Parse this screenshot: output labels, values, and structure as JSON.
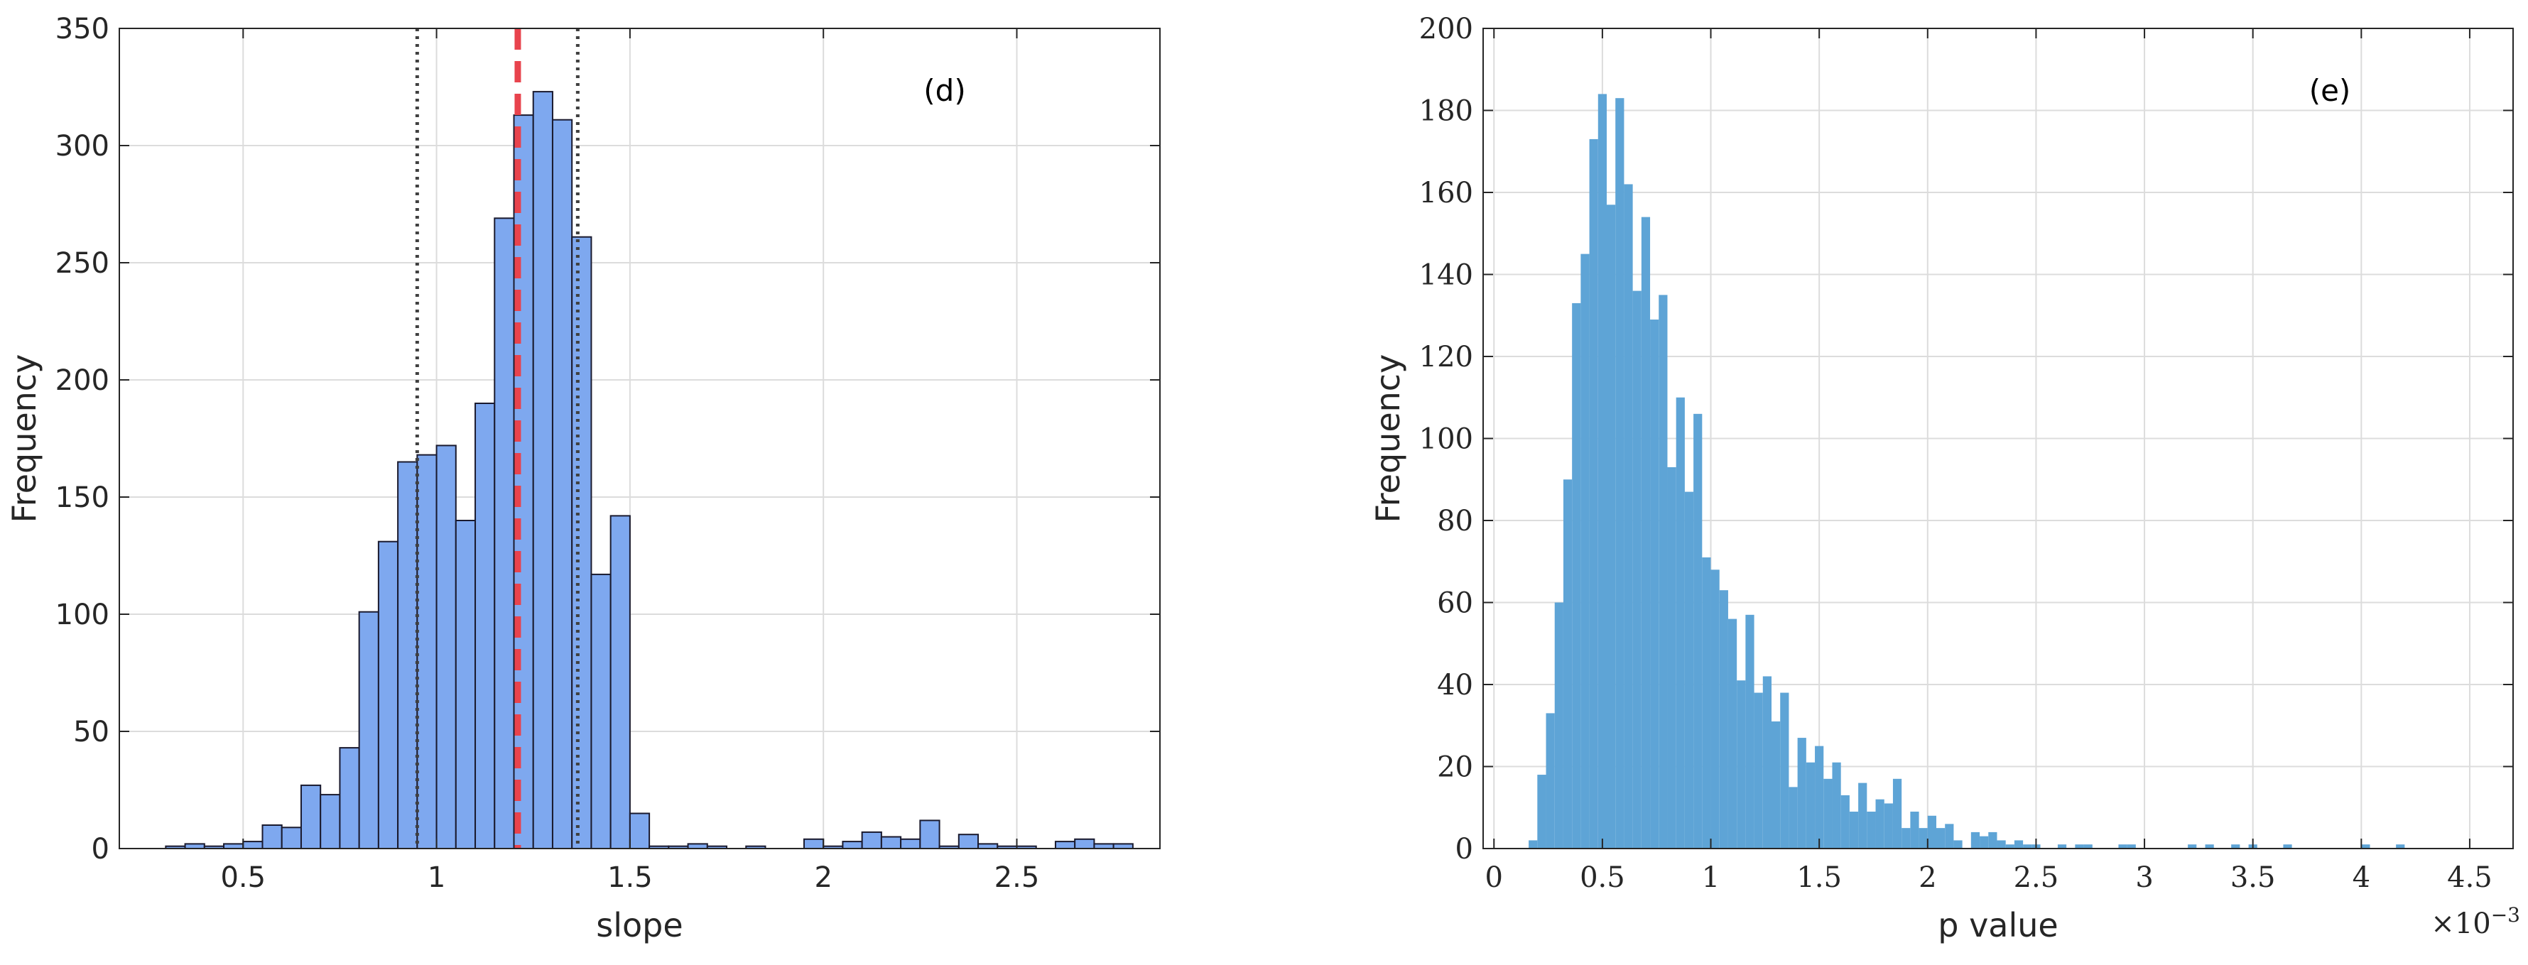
{
  "chart_data": [
    {
      "type": "bar",
      "panel_label": "(d)",
      "xlabel": "slope",
      "ylabel": "Frequency",
      "xlim": [
        0.18,
        2.87
      ],
      "ylim": [
        0,
        350
      ],
      "xticks": [
        0.5,
        1,
        1.5,
        2,
        2.5
      ],
      "xtick_labels": [
        "0.5",
        "1",
        "1.5",
        "2",
        "2.5"
      ],
      "yticks": [
        0,
        50,
        100,
        150,
        200,
        250,
        300,
        350
      ],
      "ytick_labels": [
        "0",
        "50",
        "100",
        "150",
        "200",
        "250",
        "300",
        "350"
      ],
      "grid": true,
      "bar_fill": "#7ea8ef",
      "bar_edge": "#1a1a2e",
      "bin_width": 0.05,
      "bin_starts": [
        0.25,
        0.3,
        0.35,
        0.4,
        0.45,
        0.5,
        0.55,
        0.6,
        0.65,
        0.7,
        0.75,
        0.8,
        0.85,
        0.9,
        0.95,
        1.0,
        1.05,
        1.1,
        1.15,
        1.2,
        1.25,
        1.3,
        1.35,
        1.4,
        1.45,
        1.5,
        1.55,
        1.6,
        1.65,
        1.7,
        1.75,
        1.8,
        1.85,
        1.9,
        1.95,
        2.0,
        2.05,
        2.1,
        2.15,
        2.2,
        2.25,
        2.3,
        2.35,
        2.4,
        2.45,
        2.5,
        2.55,
        2.6,
        2.65,
        2.7,
        2.75
      ],
      "values": [
        0,
        1,
        2,
        1,
        2,
        3,
        10,
        9,
        27,
        23,
        43,
        101,
        131,
        165,
        168,
        172,
        140,
        190,
        269,
        313,
        323,
        311,
        261,
        117,
        142,
        15,
        1,
        1,
        2,
        1,
        0,
        1,
        0,
        0,
        4,
        1,
        3,
        7,
        5,
        4,
        12,
        1,
        6,
        2,
        1,
        1,
        0,
        3,
        4,
        2,
        2
      ],
      "reference_lines": [
        {
          "x": 0.95,
          "style": "dotted",
          "color": "#404040"
        },
        {
          "x": 1.21,
          "style": "dashed",
          "color": "#e8434d"
        },
        {
          "x": 1.365,
          "style": "dotted",
          "color": "#404040"
        }
      ]
    },
    {
      "type": "bar",
      "panel_label": "(e)",
      "xlabel": "p value",
      "ylabel": "Frequency",
      "x_exponent_label": "×10",
      "x_exponent_power": "−3",
      "xlim": [
        -0.05,
        4.7
      ],
      "ylim": [
        0,
        200
      ],
      "xticks": [
        0,
        0.5,
        1,
        1.5,
        2,
        2.5,
        3,
        3.5,
        4,
        4.5
      ],
      "xtick_labels": [
        "0",
        "0.5",
        "1",
        "1.5",
        "2",
        "2.5",
        "3",
        "3.5",
        "4",
        "4.5"
      ],
      "yticks": [
        0,
        20,
        40,
        60,
        80,
        100,
        120,
        140,
        160,
        180,
        200
      ],
      "ytick_labels": [
        "0",
        "20",
        "40",
        "60",
        "80",
        "100",
        "120",
        "140",
        "160",
        "180",
        "200"
      ],
      "grid": true,
      "bar_fill": "#5ea4d6",
      "bin_width": 0.04,
      "bin_start": 0.16,
      "values": [
        2,
        18,
        33,
        60,
        90,
        133,
        145,
        173,
        184,
        157,
        183,
        162,
        136,
        154,
        129,
        135,
        93,
        110,
        87,
        106,
        71,
        68,
        63,
        56,
        41,
        57,
        38,
        42,
        31,
        38,
        15,
        27,
        21,
        25,
        17,
        21,
        13,
        9,
        16,
        9,
        12,
        11,
        17,
        5,
        9,
        5,
        8,
        5,
        6,
        2,
        0,
        4,
        3,
        4,
        2,
        1,
        2,
        1,
        1,
        0,
        0,
        1,
        0,
        1,
        1,
        0,
        0,
        0,
        1,
        1,
        0,
        0,
        0,
        0,
        0,
        0,
        1,
        0,
        1,
        0,
        0,
        1,
        0,
        1,
        0,
        0,
        0,
        1,
        0,
        0,
        0,
        0,
        0,
        0,
        0,
        0,
        1,
        0,
        0,
        0,
        1
      ]
    }
  ]
}
